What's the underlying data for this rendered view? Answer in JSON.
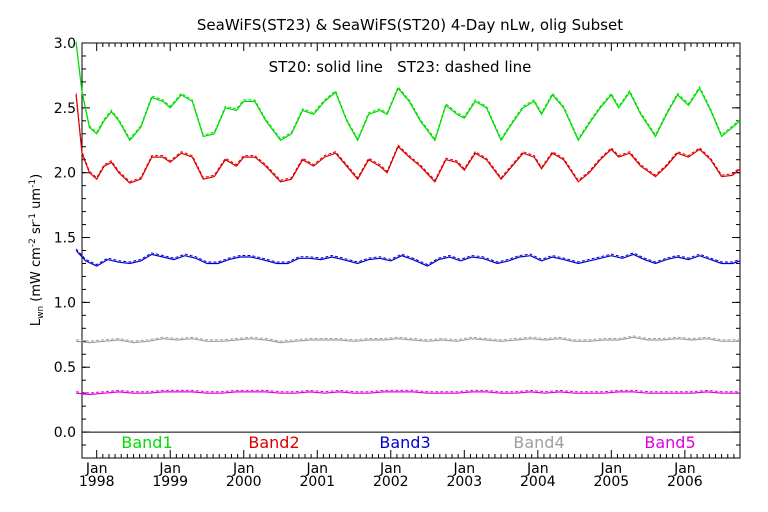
{
  "chart_data": {
    "type": "line",
    "title": "SeaWiFS(ST23) & SeaWiFS(ST20) 4-Day nLw, olig Subset",
    "annotation": "ST20: solid line   ST23: dashed line",
    "ylabel": "L_wn (mW cm^-2 sr^-1 um^-1)",
    "ylabel_parts": {
      "main": "L",
      "sub": "wn",
      "text1": " (mW cm",
      "sup1": "-2",
      "text2": " sr",
      "sup2": "-1",
      "text3": " um",
      "sup3": "-1",
      "text4": ")"
    },
    "xlim": [
      1997.8,
      2006.75
    ],
    "ylim": [
      -0.2,
      3.0
    ],
    "yticks": [
      "0.0",
      "0.5",
      "1.0",
      "1.5",
      "2.0",
      "2.5",
      "3.0"
    ],
    "ytick_values": [
      0.0,
      0.5,
      1.0,
      1.5,
      2.0,
      2.5,
      3.0
    ],
    "xticks": [
      {
        "month": "Jan",
        "year": "1998",
        "value": 1998
      },
      {
        "month": "Jan",
        "year": "1999",
        "value": 1999
      },
      {
        "month": "Jan",
        "year": "2000",
        "value": 2000
      },
      {
        "month": "Jan",
        "year": "2001",
        "value": 2001
      },
      {
        "month": "Jan",
        "year": "2002",
        "value": 2002
      },
      {
        "month": "Jan",
        "year": "2003",
        "value": 2003
      },
      {
        "month": "Jan",
        "year": "2004",
        "value": 2004
      },
      {
        "month": "Jan",
        "year": "2005",
        "value": 2005
      },
      {
        "month": "Jan",
        "year": "2006",
        "value": 2006
      }
    ],
    "grid": false,
    "series": [
      {
        "name": "Band1",
        "color": "#00dd00",
        "values": [
          [
            1997.72,
            3.0
          ],
          [
            1997.8,
            2.62
          ],
          [
            1997.9,
            2.35
          ],
          [
            1998.0,
            2.3
          ],
          [
            1998.1,
            2.4
          ],
          [
            1998.2,
            2.47
          ],
          [
            1998.3,
            2.4
          ],
          [
            1998.45,
            2.25
          ],
          [
            1998.6,
            2.35
          ],
          [
            1998.75,
            2.58
          ],
          [
            1998.9,
            2.55
          ],
          [
            1999.0,
            2.5
          ],
          [
            1999.15,
            2.6
          ],
          [
            1999.3,
            2.55
          ],
          [
            1999.45,
            2.28
          ],
          [
            1999.6,
            2.3
          ],
          [
            1999.75,
            2.5
          ],
          [
            1999.9,
            2.48
          ],
          [
            2000.0,
            2.55
          ],
          [
            2000.15,
            2.55
          ],
          [
            2000.3,
            2.4
          ],
          [
            2000.5,
            2.25
          ],
          [
            2000.65,
            2.3
          ],
          [
            2000.8,
            2.48
          ],
          [
            2000.95,
            2.45
          ],
          [
            2001.1,
            2.55
          ],
          [
            2001.25,
            2.62
          ],
          [
            2001.4,
            2.4
          ],
          [
            2001.55,
            2.25
          ],
          [
            2001.7,
            2.45
          ],
          [
            2001.85,
            2.48
          ],
          [
            2001.95,
            2.45
          ],
          [
            2002.1,
            2.65
          ],
          [
            2002.25,
            2.55
          ],
          [
            2002.4,
            2.4
          ],
          [
            2002.6,
            2.25
          ],
          [
            2002.75,
            2.52
          ],
          [
            2002.9,
            2.45
          ],
          [
            2003.0,
            2.42
          ],
          [
            2003.15,
            2.55
          ],
          [
            2003.3,
            2.5
          ],
          [
            2003.5,
            2.25
          ],
          [
            2003.65,
            2.38
          ],
          [
            2003.8,
            2.5
          ],
          [
            2003.95,
            2.55
          ],
          [
            2004.05,
            2.45
          ],
          [
            2004.2,
            2.6
          ],
          [
            2004.35,
            2.5
          ],
          [
            2004.55,
            2.25
          ],
          [
            2004.7,
            2.38
          ],
          [
            2004.85,
            2.5
          ],
          [
            2005.0,
            2.6
          ],
          [
            2005.1,
            2.5
          ],
          [
            2005.25,
            2.62
          ],
          [
            2005.4,
            2.45
          ],
          [
            2005.6,
            2.28
          ],
          [
            2005.75,
            2.45
          ],
          [
            2005.9,
            2.6
          ],
          [
            2006.05,
            2.52
          ],
          [
            2006.2,
            2.65
          ],
          [
            2006.35,
            2.48
          ],
          [
            2006.5,
            2.28
          ],
          [
            2006.65,
            2.35
          ],
          [
            2006.75,
            2.4
          ]
        ]
      },
      {
        "name": "Band2",
        "color": "#dd0000",
        "values": [
          [
            1997.72,
            2.6
          ],
          [
            1997.8,
            2.15
          ],
          [
            1997.9,
            2.0
          ],
          [
            1998.0,
            1.95
          ],
          [
            1998.1,
            2.05
          ],
          [
            1998.2,
            2.08
          ],
          [
            1998.3,
            2.0
          ],
          [
            1998.45,
            1.92
          ],
          [
            1998.6,
            1.95
          ],
          [
            1998.75,
            2.12
          ],
          [
            1998.9,
            2.12
          ],
          [
            1999.0,
            2.08
          ],
          [
            1999.15,
            2.15
          ],
          [
            1999.3,
            2.12
          ],
          [
            1999.45,
            1.95
          ],
          [
            1999.6,
            1.97
          ],
          [
            1999.75,
            2.1
          ],
          [
            1999.9,
            2.05
          ],
          [
            2000.0,
            2.12
          ],
          [
            2000.15,
            2.12
          ],
          [
            2000.3,
            2.05
          ],
          [
            2000.5,
            1.93
          ],
          [
            2000.65,
            1.95
          ],
          [
            2000.8,
            2.1
          ],
          [
            2000.95,
            2.05
          ],
          [
            2001.1,
            2.12
          ],
          [
            2001.25,
            2.15
          ],
          [
            2001.4,
            2.05
          ],
          [
            2001.55,
            1.95
          ],
          [
            2001.7,
            2.1
          ],
          [
            2001.85,
            2.05
          ],
          [
            2001.95,
            2.0
          ],
          [
            2002.1,
            2.2
          ],
          [
            2002.25,
            2.12
          ],
          [
            2002.4,
            2.05
          ],
          [
            2002.6,
            1.93
          ],
          [
            2002.75,
            2.1
          ],
          [
            2002.9,
            2.08
          ],
          [
            2003.0,
            2.02
          ],
          [
            2003.15,
            2.15
          ],
          [
            2003.3,
            2.1
          ],
          [
            2003.5,
            1.95
          ],
          [
            2003.65,
            2.05
          ],
          [
            2003.8,
            2.15
          ],
          [
            2003.95,
            2.12
          ],
          [
            2004.05,
            2.03
          ],
          [
            2004.2,
            2.15
          ],
          [
            2004.35,
            2.1
          ],
          [
            2004.55,
            1.93
          ],
          [
            2004.7,
            2.0
          ],
          [
            2004.85,
            2.1
          ],
          [
            2005.0,
            2.18
          ],
          [
            2005.1,
            2.12
          ],
          [
            2005.25,
            2.15
          ],
          [
            2005.4,
            2.05
          ],
          [
            2005.6,
            1.97
          ],
          [
            2005.75,
            2.05
          ],
          [
            2005.9,
            2.15
          ],
          [
            2006.05,
            2.12
          ],
          [
            2006.2,
            2.18
          ],
          [
            2006.35,
            2.1
          ],
          [
            2006.5,
            1.97
          ],
          [
            2006.65,
            1.98
          ],
          [
            2006.75,
            2.03
          ]
        ]
      },
      {
        "name": "Band3",
        "color": "#0000cc",
        "values": [
          [
            1997.72,
            1.4
          ],
          [
            1997.85,
            1.32
          ],
          [
            1998.0,
            1.28
          ],
          [
            1998.15,
            1.33
          ],
          [
            1998.3,
            1.31
          ],
          [
            1998.45,
            1.3
          ],
          [
            1998.6,
            1.32
          ],
          [
            1998.75,
            1.37
          ],
          [
            1998.9,
            1.35
          ],
          [
            1999.05,
            1.33
          ],
          [
            1999.2,
            1.36
          ],
          [
            1999.35,
            1.34
          ],
          [
            1999.5,
            1.3
          ],
          [
            1999.65,
            1.3
          ],
          [
            1999.8,
            1.33
          ],
          [
            1999.95,
            1.35
          ],
          [
            2000.1,
            1.35
          ],
          [
            2000.25,
            1.33
          ],
          [
            2000.45,
            1.3
          ],
          [
            2000.6,
            1.3
          ],
          [
            2000.75,
            1.34
          ],
          [
            2000.9,
            1.34
          ],
          [
            2001.05,
            1.33
          ],
          [
            2001.2,
            1.35
          ],
          [
            2001.35,
            1.33
          ],
          [
            2001.55,
            1.3
          ],
          [
            2001.7,
            1.33
          ],
          [
            2001.85,
            1.34
          ],
          [
            2002.0,
            1.32
          ],
          [
            2002.15,
            1.36
          ],
          [
            2002.3,
            1.33
          ],
          [
            2002.5,
            1.28
          ],
          [
            2002.65,
            1.33
          ],
          [
            2002.8,
            1.35
          ],
          [
            2002.95,
            1.32
          ],
          [
            2003.1,
            1.35
          ],
          [
            2003.25,
            1.34
          ],
          [
            2003.45,
            1.3
          ],
          [
            2003.6,
            1.32
          ],
          [
            2003.75,
            1.35
          ],
          [
            2003.9,
            1.36
          ],
          [
            2004.05,
            1.32
          ],
          [
            2004.2,
            1.35
          ],
          [
            2004.35,
            1.33
          ],
          [
            2004.55,
            1.3
          ],
          [
            2004.7,
            1.32
          ],
          [
            2004.85,
            1.34
          ],
          [
            2005.0,
            1.36
          ],
          [
            2005.15,
            1.34
          ],
          [
            2005.3,
            1.37
          ],
          [
            2005.45,
            1.33
          ],
          [
            2005.6,
            1.3
          ],
          [
            2005.75,
            1.33
          ],
          [
            2005.9,
            1.35
          ],
          [
            2006.05,
            1.33
          ],
          [
            2006.2,
            1.36
          ],
          [
            2006.35,
            1.33
          ],
          [
            2006.5,
            1.3
          ],
          [
            2006.65,
            1.3
          ],
          [
            2006.75,
            1.32
          ]
        ]
      },
      {
        "name": "Band4",
        "color": "#a0a0a0",
        "values": [
          [
            1997.72,
            0.7
          ],
          [
            1997.9,
            0.69
          ],
          [
            1998.1,
            0.7
          ],
          [
            1998.3,
            0.71
          ],
          [
            1998.5,
            0.69
          ],
          [
            1998.7,
            0.7
          ],
          [
            1998.9,
            0.72
          ],
          [
            1999.1,
            0.71
          ],
          [
            1999.3,
            0.72
          ],
          [
            1999.5,
            0.7
          ],
          [
            1999.7,
            0.7
          ],
          [
            1999.9,
            0.71
          ],
          [
            2000.1,
            0.72
          ],
          [
            2000.3,
            0.71
          ],
          [
            2000.5,
            0.69
          ],
          [
            2000.7,
            0.7
          ],
          [
            2000.9,
            0.71
          ],
          [
            2001.1,
            0.71
          ],
          [
            2001.3,
            0.71
          ],
          [
            2001.5,
            0.7
          ],
          [
            2001.7,
            0.71
          ],
          [
            2001.9,
            0.71
          ],
          [
            2002.1,
            0.72
          ],
          [
            2002.3,
            0.71
          ],
          [
            2002.5,
            0.7
          ],
          [
            2002.7,
            0.71
          ],
          [
            2002.9,
            0.7
          ],
          [
            2003.1,
            0.72
          ],
          [
            2003.3,
            0.71
          ],
          [
            2003.5,
            0.7
          ],
          [
            2003.7,
            0.71
          ],
          [
            2003.9,
            0.72
          ],
          [
            2004.1,
            0.71
          ],
          [
            2004.3,
            0.72
          ],
          [
            2004.5,
            0.7
          ],
          [
            2004.7,
            0.7
          ],
          [
            2004.9,
            0.71
          ],
          [
            2005.1,
            0.71
          ],
          [
            2005.3,
            0.73
          ],
          [
            2005.5,
            0.71
          ],
          [
            2005.7,
            0.71
          ],
          [
            2005.9,
            0.72
          ],
          [
            2006.1,
            0.71
          ],
          [
            2006.3,
            0.72
          ],
          [
            2006.5,
            0.7
          ],
          [
            2006.75,
            0.7
          ]
        ]
      },
      {
        "name": "Band5",
        "color": "#dd00dd",
        "values": [
          [
            1997.72,
            0.3
          ],
          [
            1997.9,
            0.29
          ],
          [
            1998.1,
            0.3
          ],
          [
            1998.3,
            0.31
          ],
          [
            1998.5,
            0.3
          ],
          [
            1998.7,
            0.3
          ],
          [
            1998.9,
            0.31
          ],
          [
            1999.1,
            0.31
          ],
          [
            1999.3,
            0.31
          ],
          [
            1999.5,
            0.3
          ],
          [
            1999.7,
            0.3
          ],
          [
            1999.9,
            0.31
          ],
          [
            2000.1,
            0.31
          ],
          [
            2000.3,
            0.31
          ],
          [
            2000.5,
            0.3
          ],
          [
            2000.7,
            0.3
          ],
          [
            2000.9,
            0.31
          ],
          [
            2001.1,
            0.3
          ],
          [
            2001.3,
            0.31
          ],
          [
            2001.5,
            0.3
          ],
          [
            2001.7,
            0.3
          ],
          [
            2001.9,
            0.31
          ],
          [
            2002.1,
            0.31
          ],
          [
            2002.3,
            0.31
          ],
          [
            2002.5,
            0.3
          ],
          [
            2002.7,
            0.3
          ],
          [
            2002.9,
            0.3
          ],
          [
            2003.1,
            0.31
          ],
          [
            2003.3,
            0.31
          ],
          [
            2003.5,
            0.3
          ],
          [
            2003.7,
            0.3
          ],
          [
            2003.9,
            0.31
          ],
          [
            2004.1,
            0.3
          ],
          [
            2004.3,
            0.31
          ],
          [
            2004.5,
            0.3
          ],
          [
            2004.7,
            0.3
          ],
          [
            2004.9,
            0.3
          ],
          [
            2005.1,
            0.31
          ],
          [
            2005.3,
            0.31
          ],
          [
            2005.5,
            0.3
          ],
          [
            2005.7,
            0.3
          ],
          [
            2005.9,
            0.3
          ],
          [
            2006.1,
            0.3
          ],
          [
            2006.3,
            0.31
          ],
          [
            2006.5,
            0.3
          ],
          [
            2006.75,
            0.3
          ]
        ]
      }
    ]
  }
}
